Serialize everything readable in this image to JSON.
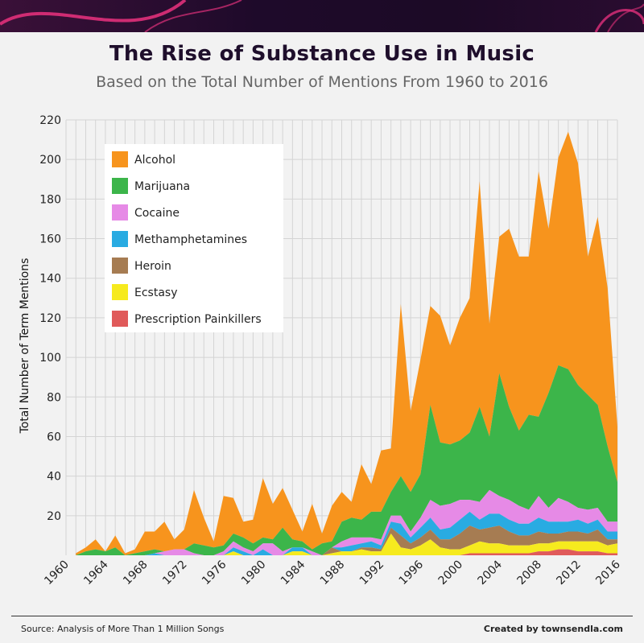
{
  "header": {
    "title": "The Rise of Substance Use in Music",
    "subtitle": "Based on the Total Number of Mentions From 1960 to 2016"
  },
  "footer": {
    "source": "Source: Analysis of More Than 1 Million Songs",
    "credit": "Created by townsendla.com"
  },
  "colors": {
    "banner_accent": "#e0307a",
    "grid": "#d4d4d4"
  },
  "chart_data": {
    "type": "area",
    "stacked": true,
    "title": "The Rise of Substance Use in Music",
    "xlabel": "",
    "ylabel": "Total Number of Term Mentions",
    "xlim": [
      1960,
      2016
    ],
    "ylim": [
      0,
      220
    ],
    "x_ticks": [
      "1960",
      "1964",
      "1968",
      "1972",
      "1976",
      "1980",
      "1984",
      "1988",
      "1992",
      "1996",
      "2000",
      "2004",
      "2008",
      "2012",
      "2016"
    ],
    "y_ticks": [
      "20",
      "40",
      "60",
      "80",
      "100",
      "120",
      "140",
      "160",
      "180",
      "200",
      "220"
    ],
    "legend_position": "top-left",
    "x": [
      1961,
      1962,
      1963,
      1964,
      1965,
      1966,
      1967,
      1968,
      1969,
      1970,
      1971,
      1972,
      1973,
      1974,
      1975,
      1976,
      1977,
      1978,
      1979,
      1980,
      1981,
      1982,
      1983,
      1984,
      1985,
      1986,
      1987,
      1988,
      1989,
      1990,
      1991,
      1992,
      1993,
      1994,
      1995,
      1996,
      1997,
      1998,
      1999,
      2000,
      2001,
      2002,
      2003,
      2004,
      2005,
      2006,
      2007,
      2008,
      2009,
      2010,
      2011,
      2012,
      2013,
      2014,
      2015,
      2016
    ],
    "series": [
      {
        "name": "Prescription Painkillers",
        "color": "#e05a5a",
        "values": [
          0,
          0,
          0,
          0,
          0,
          0,
          0,
          0,
          0,
          0,
          0,
          0,
          0,
          0,
          0,
          0,
          0,
          0,
          0,
          0,
          0,
          0,
          0,
          0,
          0,
          0,
          0,
          0,
          0,
          0,
          0,
          0,
          0,
          0,
          0,
          0,
          0,
          0,
          0,
          0,
          1,
          1,
          1,
          1,
          1,
          1,
          1,
          2,
          2,
          3,
          3,
          2,
          2,
          2,
          1,
          1
        ]
      },
      {
        "name": "Ecstasy",
        "color": "#f6ea1e",
        "values": [
          0,
          0,
          0,
          0,
          0,
          0,
          0,
          0,
          0,
          0,
          0,
          0,
          0,
          0,
          0,
          0,
          2,
          0,
          0,
          0,
          0,
          0,
          2,
          2,
          0,
          0,
          1,
          2,
          2,
          3,
          2,
          2,
          11,
          4,
          3,
          5,
          8,
          4,
          3,
          3,
          4,
          6,
          5,
          5,
          4,
          4,
          4,
          4,
          4,
          4,
          4,
          5,
          5,
          5,
          4,
          5
        ]
      },
      {
        "name": "Heroin",
        "color": "#a67c52",
        "values": [
          0,
          0,
          0,
          0,
          0,
          0,
          0,
          0,
          0,
          0,
          0,
          0,
          0,
          0,
          0,
          0,
          0,
          0,
          0,
          0,
          0,
          0,
          0,
          0,
          0,
          0,
          3,
          0,
          0,
          1,
          2,
          1,
          3,
          6,
          3,
          4,
          5,
          4,
          5,
          8,
          10,
          6,
          8,
          9,
          7,
          5,
          5,
          6,
          5,
          4,
          5,
          5,
          4,
          6,
          3,
          2
        ]
      },
      {
        "name": "Methamphetamines",
        "color": "#29abe2",
        "values": [
          0,
          0,
          0,
          0,
          0,
          0,
          0,
          0,
          1,
          0,
          0,
          0,
          0,
          0,
          0,
          0,
          2,
          2,
          0,
          3,
          0,
          0,
          2,
          2,
          0,
          0,
          0,
          2,
          3,
          2,
          3,
          2,
          3,
          6,
          3,
          5,
          6,
          5,
          6,
          7,
          7,
          5,
          7,
          6,
          6,
          6,
          6,
          7,
          6,
          6,
          5,
          6,
          5,
          5,
          4,
          4
        ]
      },
      {
        "name": "Cocaine",
        "color": "#e68ae6",
        "values": [
          0,
          0,
          0,
          0,
          0,
          0,
          0,
          0,
          0,
          2,
          3,
          3,
          1,
          0,
          0,
          2,
          3,
          2,
          2,
          3,
          6,
          2,
          0,
          0,
          2,
          0,
          0,
          3,
          4,
          3,
          2,
          3,
          3,
          4,
          3,
          5,
          9,
          12,
          12,
          10,
          6,
          9,
          12,
          9,
          10,
          9,
          7,
          11,
          7,
          12,
          10,
          6,
          7,
          6,
          5,
          5
        ]
      },
      {
        "name": "Marijuana",
        "color": "#3cb54a",
        "values": [
          0,
          2,
          3,
          2,
          4,
          0,
          1,
          2,
          2,
          0,
          0,
          0,
          5,
          5,
          4,
          3,
          4,
          5,
          4,
          3,
          2,
          12,
          4,
          3,
          1,
          6,
          3,
          10,
          10,
          9,
          13,
          14,
          12,
          20,
          20,
          22,
          48,
          32,
          30,
          30,
          34,
          48,
          27,
          62,
          47,
          38,
          48,
          40,
          58,
          67,
          67,
          62,
          58,
          52,
          38,
          20
        ]
      },
      {
        "name": "Alcohol",
        "color": "#f7941d",
        "values": [
          1,
          2,
          5,
          0,
          6,
          1,
          2,
          10,
          9,
          15,
          5,
          10,
          27,
          14,
          3,
          25,
          18,
          8,
          12,
          30,
          18,
          20,
          15,
          5,
          23,
          5,
          18,
          15,
          8,
          28,
          14,
          31,
          22,
          87,
          41,
          58,
          50,
          64,
          50,
          62,
          68,
          114,
          57,
          69,
          90,
          88,
          80,
          124,
          83,
          105,
          120,
          112,
          70,
          95,
          80,
          28
        ]
      }
    ]
  }
}
